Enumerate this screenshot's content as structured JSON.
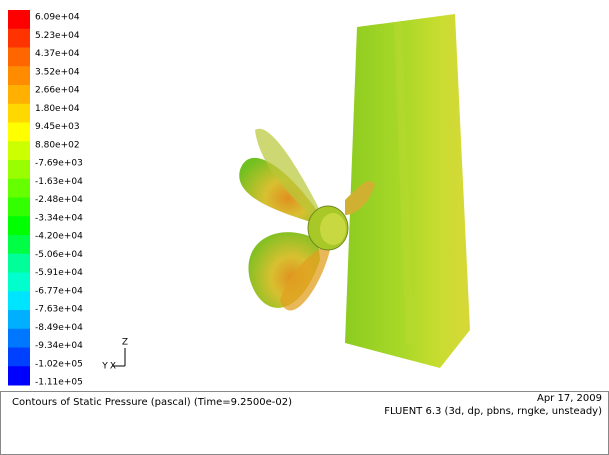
{
  "colorbar": {
    "labels": [
      "6.09e+04",
      "5.23e+04",
      "4.37e+04",
      "3.52e+04",
      "2.66e+04",
      "1.80e+04",
      "9.45e+03",
      "8.80e+02",
      "-7.69e+03",
      "-1.63e+04",
      "-2.48e+04",
      "-3.34e+04",
      "-4.20e+04",
      "-5.06e+04",
      "-5.91e+04",
      "-6.77e+04",
      "-7.63e+04",
      "-8.49e+04",
      "-9.34e+04",
      "-1.02e+05",
      "-1.11e+05"
    ],
    "colors": [
      "#ff0000",
      "#ff3300",
      "#ff6600",
      "#ff8c00",
      "#ffb000",
      "#ffd800",
      "#ffff00",
      "#ccff00",
      "#99ff00",
      "#66ff00",
      "#33ff00",
      "#00ff00",
      "#00ff44",
      "#00ff99",
      "#00ffcc",
      "#00e5ff",
      "#00b0ff",
      "#0077ff",
      "#0040ff",
      "#0000ff"
    ]
  },
  "axes": {
    "z": "Z",
    "y": "Y",
    "x": "X"
  },
  "footer": {
    "title": "Contours of Static Pressure (pascal)  (Time=9.2500e-02)",
    "date": "Apr 17, 2009",
    "solver": "FLUENT 6.3 (3d, dp, pbns, rngke, unsteady)"
  }
}
